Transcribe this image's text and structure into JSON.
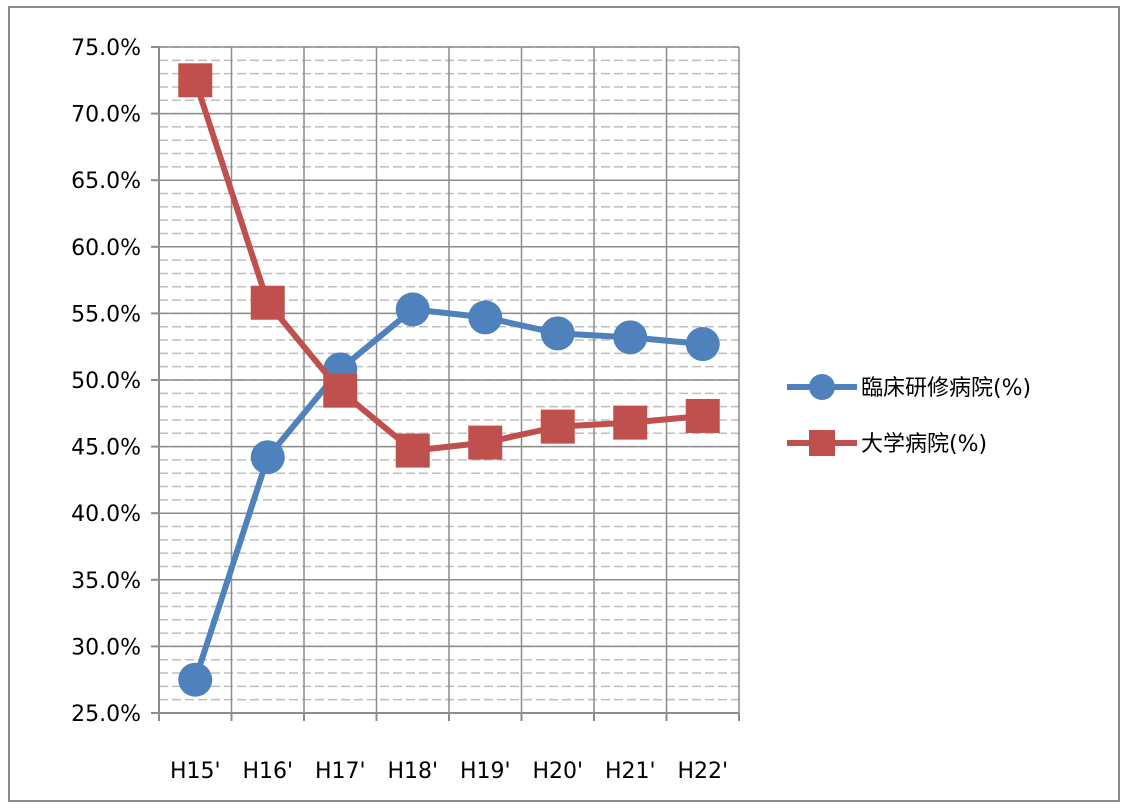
{
  "chart_data": {
    "type": "line",
    "title": "",
    "xlabel": "",
    "ylabel": "",
    "categories": [
      "H15'",
      "H16'",
      "H17'",
      "H18'",
      "H19'",
      "H20'",
      "H21'",
      "H22'"
    ],
    "ylim": [
      25.0,
      75.0
    ],
    "ytick_step": 5.0,
    "ytick_labels": [
      "25.0%",
      "30.0%",
      "35.0%",
      "40.0%",
      "45.0%",
      "50.0%",
      "55.0%",
      "60.0%",
      "65.0%",
      "70.0%",
      "75.0%"
    ],
    "grid": true,
    "legend_position": "right",
    "series": [
      {
        "name": "臨床研修病院(%)",
        "marker": "circle",
        "color": "#4f81bd",
        "values": [
          27.5,
          44.2,
          50.8,
          55.3,
          54.7,
          53.5,
          53.2,
          52.7
        ]
      },
      {
        "name": "大学病院(%)",
        "marker": "square",
        "color": "#c0504d",
        "values": [
          72.5,
          55.8,
          49.2,
          44.7,
          45.3,
          46.5,
          46.8,
          47.3
        ]
      }
    ]
  }
}
